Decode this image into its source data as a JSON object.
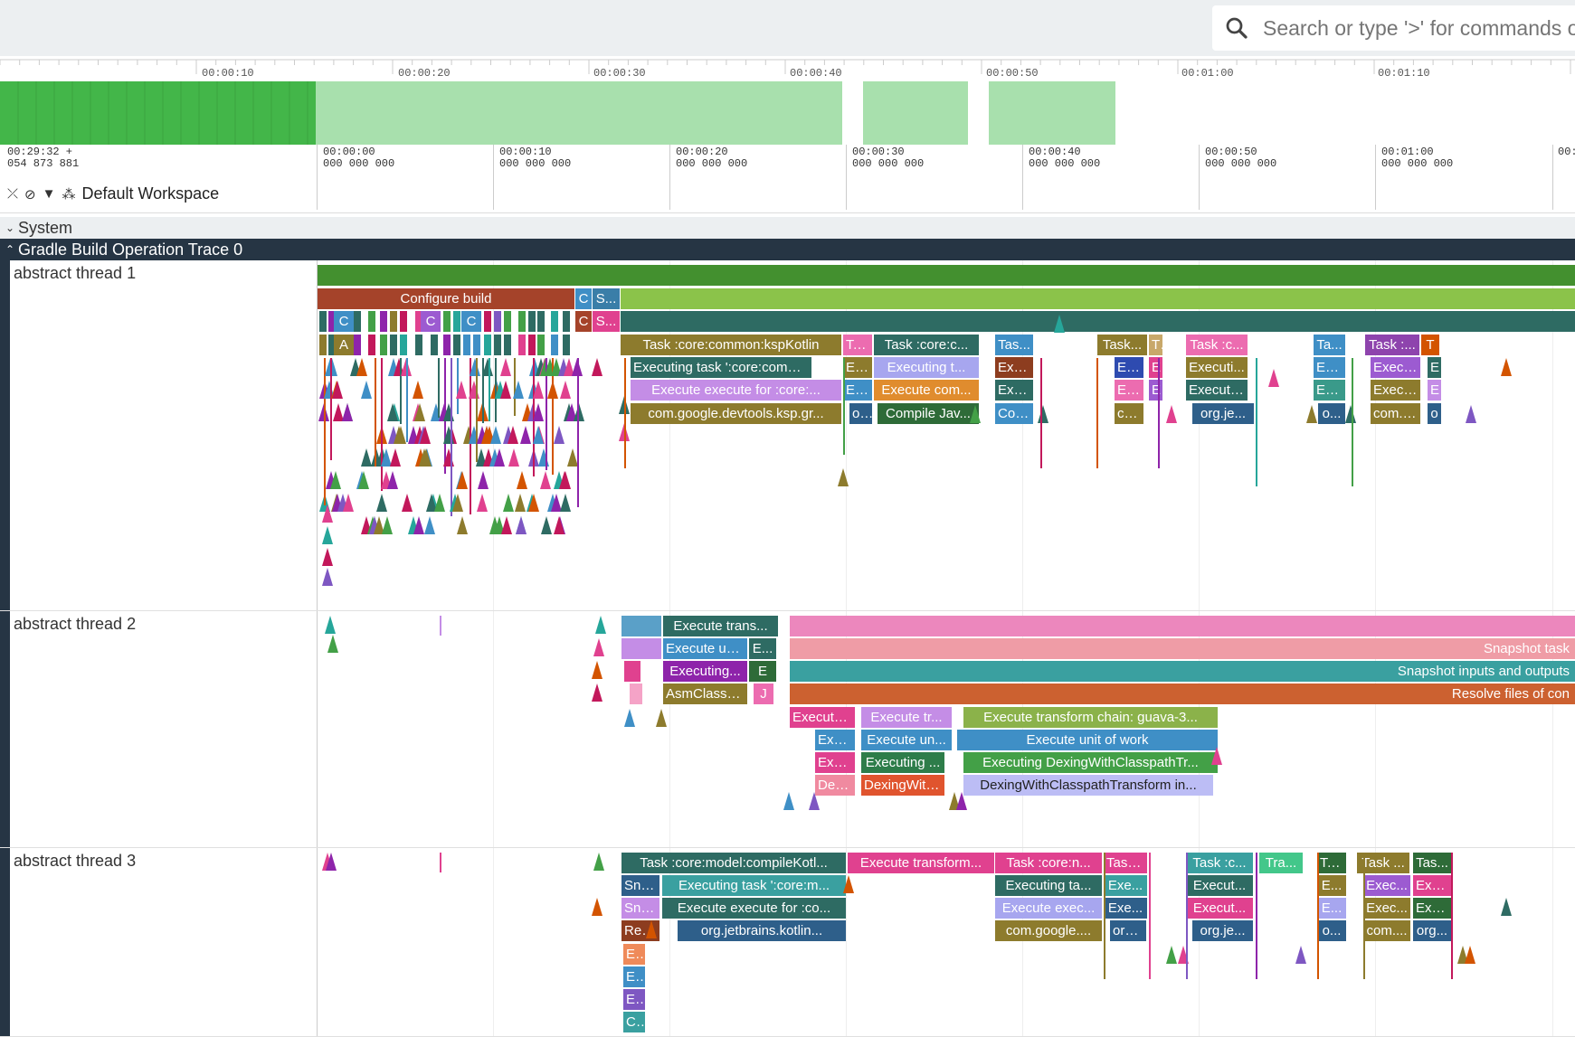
{
  "search": {
    "placeholder": "Search or type '>' for commands or"
  },
  "overview": {
    "ticks": [
      "00:00:10",
      "00:00:20",
      "00:00:30",
      "00:00:40",
      "00:00:50",
      "00:01:00",
      "00:01:10"
    ]
  },
  "timebar": {
    "offset_line1": "00:29:32    +",
    "offset_line2": "054 873 881",
    "ticks": [
      "00:00:00\n000 000 000",
      "00:00:10\n000 000 000",
      "00:00:20\n000 000 000",
      "00:00:30\n000 000 000",
      "00:00:40\n000 000 000",
      "00:00:50\n000 000 000",
      "00:01:00\n000 000 000",
      "00:0"
    ],
    "workspace": "Default Workspace"
  },
  "groups": {
    "system": "System",
    "trace": "Gradle Build Operation Trace 0"
  },
  "tracks": [
    "abstract thread 1",
    "abstract thread 2",
    "abstract thread 3"
  ],
  "colors": {
    "green_dark": "#43a047",
    "green_light": "#a5dfae",
    "darkgreen": "#3f8c3d",
    "lime": "#8bc34a",
    "teal_dark": "#2e6b63",
    "rust": "#a5432a",
    "olive": "#8d7b2d",
    "blue": "#3f8fc6",
    "pink": "#ec6cb0"
  },
  "slices": {
    "t1": [
      "Configure build",
      "C",
      "S...",
      "C",
      "C",
      "C",
      "C",
      "S...",
      "A",
      "Task :core:common:kspKotlin",
      "Ta...",
      "Task :core:c...",
      "Tas...",
      "Task...",
      "T",
      "Task :c...",
      "Ta...",
      "Task :...",
      "T",
      "Executing task ':core:comm...",
      "Ex...",
      "Executing t...",
      "Exe...",
      "Ex...",
      "E",
      "Executi...",
      "Ex...",
      "Execu...",
      "E",
      "Execute execute for :core:...",
      "Ex...",
      "Execute com...",
      "Exe...",
      "Ex...",
      "E",
      "Execute...",
      "Ex...",
      "Execu...",
      "E",
      "com.google.devtools.ksp.gr...",
      "o...",
      "Compile Jav...",
      "Com...",
      "co...",
      "org.je...",
      "o...",
      "com.g...",
      "o"
    ],
    "t2": [
      "Execute trans...",
      "Execute un...",
      "E...",
      "Executing...",
      "E",
      "AsmClasse...",
      "J",
      "Snapshot task",
      "Snapshot inputs and outputs",
      "Resolve files of con",
      "Execute...",
      "Execute tr...",
      "Execute transform chain: guava-3...",
      "Exe...",
      "Execute un...",
      "Execute unit of work",
      "Exe...",
      "Executing ...",
      "Executing DexingWithClasspathTr...",
      "Dex...",
      "DexingWith...",
      "DexingWithClasspathTransform in..."
    ],
    "t3": [
      "Task :core:model:compileKotl...",
      "Execute transform...",
      "Task :core:n...",
      "Task...",
      "Task :c...",
      "Tra...",
      "Ta...",
      "Task ...",
      "Tas...",
      "Sna...",
      "Executing task ':core:m...",
      "Executing ta...",
      "Exe...",
      "Execut...",
      "E...",
      "Exec...",
      "Exe...",
      "Sna...",
      "Execute execute for :co...",
      "Execute exec...",
      "Exe...",
      "Execut...",
      "E...",
      "Exec...",
      "Exe...",
      "Res...",
      "org.jetbrains.kotlin...",
      "com.google....",
      "org...",
      "org.je...",
      "o...",
      "com....",
      "org...",
      "E...",
      "E...",
      "E...",
      "C..."
    ]
  }
}
